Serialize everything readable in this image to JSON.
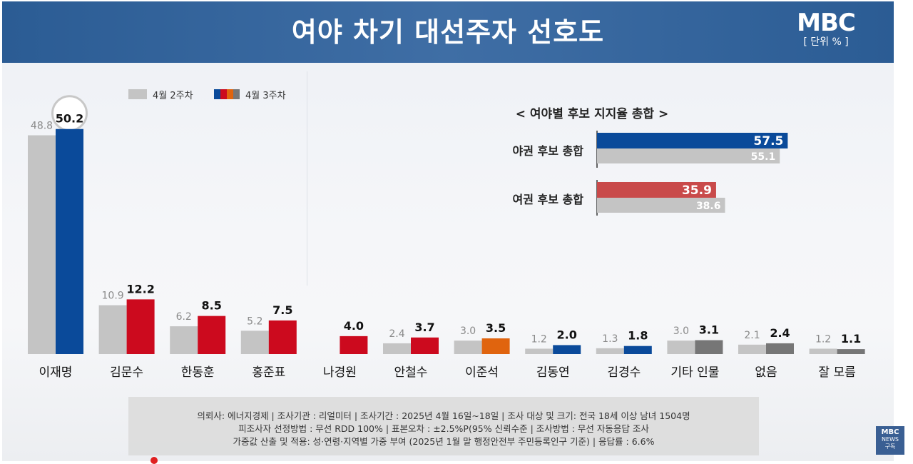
{
  "header": {
    "title": "여야 차기 대선주자 선호도",
    "logo": "MBC",
    "unit": "[ 단위 % ]"
  },
  "legend": {
    "prev": "4월 2주차",
    "curr": "4월 3주차"
  },
  "chart_data": [
    {
      "type": "bar",
      "title": "",
      "categories": [
        "이재명",
        "김문수",
        "한동훈",
        "홍준표",
        "나경원",
        "안철수",
        "이준석",
        "김동연",
        "김경수",
        "기타 인물",
        "없음",
        "잘 모름"
      ],
      "series": [
        {
          "name": "4월 2주차",
          "values": [
            48.8,
            10.9,
            6.2,
            5.2,
            null,
            2.4,
            3.0,
            1.2,
            1.3,
            3.0,
            2.1,
            1.2
          ]
        },
        {
          "name": "4월 3주차",
          "values": [
            50.2,
            12.2,
            8.5,
            7.5,
            4.0,
            3.7,
            3.5,
            2.0,
            1.8,
            3.1,
            2.4,
            1.1
          ]
        }
      ],
      "prev_labels": [
        "48.8",
        "10.9",
        "6.2",
        "5.2",
        "",
        "2.4",
        "3.0",
        "1.2",
        "1.3",
        "3.0",
        "2.1",
        "1.2"
      ],
      "curr_labels": [
        "50.2",
        "12.2",
        "8.5",
        "7.5",
        "4.0",
        "3.7",
        "3.5",
        "2.0",
        "1.8",
        "3.1",
        "2.4",
        "1.1"
      ],
      "ylim": [
        0,
        52
      ],
      "grid": false,
      "legend_position": "top-left",
      "colors": {
        "prev": "#c4c4c4",
        "curr": [
          "#0a4a9a",
          "#cc0a1e",
          "#cc0a1e",
          "#cc0a1e",
          "#cc0a1e",
          "#cc0a1e",
          "#e0640e",
          "#0a4a9a",
          "#0a4a9a",
          "#767676",
          "#767676",
          "#767676"
        ]
      }
    },
    {
      "type": "bar",
      "orientation": "horizontal",
      "title": "< 여야별 후보 지지율 총합 >",
      "categories": [
        "야권 후보 총합",
        "여권 후보 총합"
      ],
      "series": [
        {
          "name": "4월 3주차",
          "values": [
            57.5,
            35.9
          ]
        },
        {
          "name": "4월 2주차",
          "values": [
            55.1,
            38.6
          ]
        }
      ],
      "curr_labels": [
        "57.5",
        "35.9"
      ],
      "prev_labels": [
        "55.1",
        "38.6"
      ],
      "xlim": [
        0,
        60
      ],
      "colors": {
        "curr": [
          "#0a4a9a",
          "#c94a4a"
        ],
        "prev": "#c4c4c4"
      }
    }
  ],
  "footer": {
    "line1": "의뢰사: 에너지경제 | 조사기관 : 리얼미터  |  조사기간 : 2025년 4월 16일~18일 | 조사 대상 및 크기: 전국 18세 이상 남녀 1504명",
    "line2": "피조사자 선정방법 : 무선 RDD 100% | 표본오차 : ±2.5%P(95% 신뢰수준 | 조사방법 : 무선 자동응답 조사",
    "line3": "가중값 산출 및 적용: 성·연령·지역별 가중 부여 (2025년 1월 말 행정안전부 주민등록인구 기준) | 응답률 : 6.6%"
  },
  "badge": {
    "logo": "MBC",
    "sub": "NEWS",
    "subscribe": "구독"
  }
}
